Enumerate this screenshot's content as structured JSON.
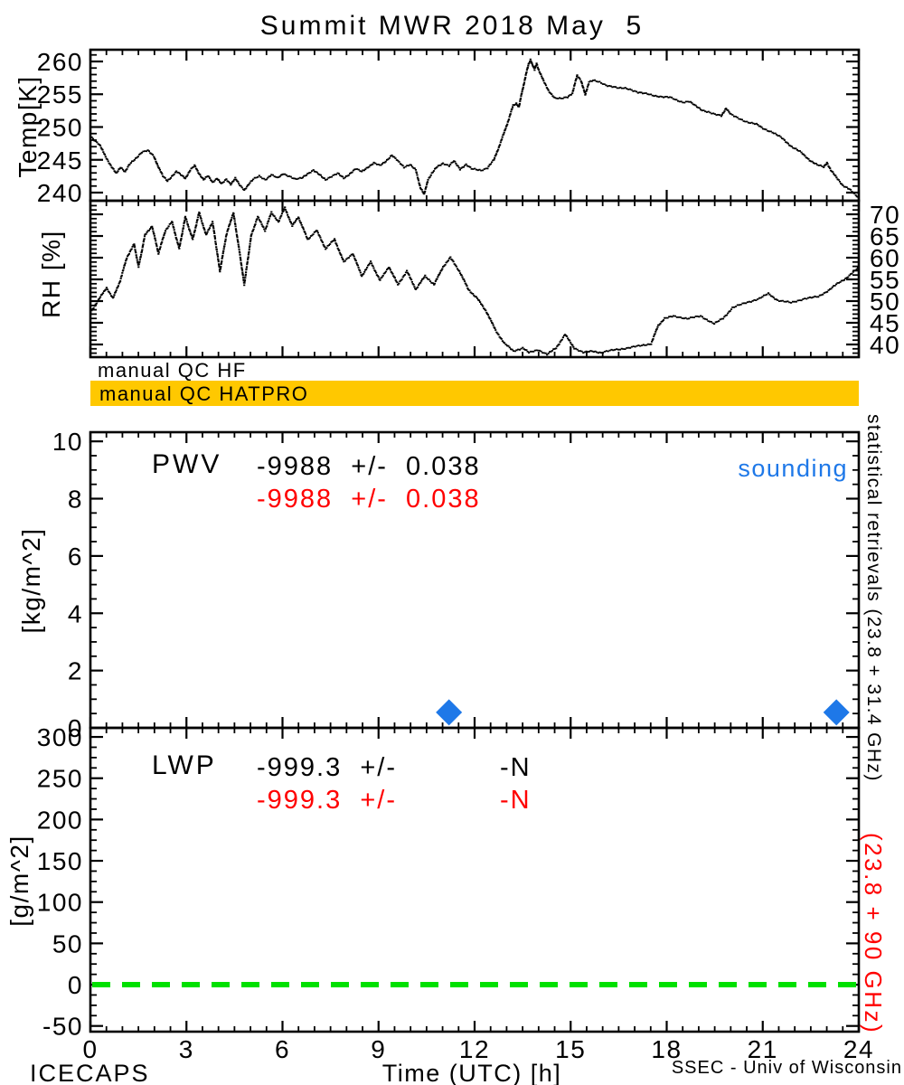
{
  "title": "Summit MWR 2018 May  5",
  "qc": {
    "hf_label": "manual QC HF",
    "hatpro_label": "manual QC HATPRO",
    "bar_color": "#ffc800"
  },
  "side_text": {
    "black": "statistical retrievals (23.8 + 31.4 GHz)",
    "red": "(23.8 + 90 GHz)",
    "red_color": "#ff0000"
  },
  "footer": {
    "left": "ICECAPS",
    "right": "SSEC - Univ of Wisconsin"
  },
  "x_axis": {
    "label": "Time (UTC) [h]",
    "xlim": [
      0,
      24
    ],
    "ticks": [
      0,
      3,
      6,
      9,
      12,
      15,
      18,
      21,
      24
    ],
    "minor_step": 0.5
  },
  "colors": {
    "trace": "#000000",
    "sounding_blue": "#1e78e8",
    "zero_line_green": "#00e000",
    "stat_red": "#ff0000"
  },
  "chart_data": [
    {
      "id": "temp",
      "type": "scatter",
      "ylabel": "Temp[K]",
      "ylim": [
        238.76,
        261.79
      ],
      "yticks": [
        240,
        245,
        250,
        255,
        260
      ],
      "yminor_step": 1,
      "ylabel_side": "left",
      "grid": false,
      "series": [
        {
          "name": "brightness temperature",
          "color": "#000000",
          "marker": "dot",
          "points": [
            [
              0,
              248.6
            ],
            [
              0.28,
              247.3
            ],
            [
              0.47,
              245.5
            ],
            [
              0.66,
              243.9
            ],
            [
              0.8,
              242.9
            ],
            [
              0.94,
              243.9
            ],
            [
              1.08,
              243.2
            ],
            [
              1.22,
              244.3
            ],
            [
              1.41,
              245.2
            ],
            [
              1.6,
              246.2
            ],
            [
              1.79,
              246.4
            ],
            [
              1.98,
              245.5
            ],
            [
              2.12,
              243.9
            ],
            [
              2.26,
              242.5
            ],
            [
              2.4,
              241.8
            ],
            [
              2.54,
              242.5
            ],
            [
              2.68,
              243.2
            ],
            [
              2.82,
              242.7
            ],
            [
              2.96,
              242.2
            ],
            [
              3.11,
              243.4
            ],
            [
              3.25,
              244.1
            ],
            [
              3.39,
              242.9
            ],
            [
              3.53,
              242.0
            ],
            [
              3.67,
              242.5
            ],
            [
              3.81,
              241.6
            ],
            [
              3.95,
              242.2
            ],
            [
              4.09,
              241.3
            ],
            [
              4.24,
              242.0
            ],
            [
              4.38,
              241.3
            ],
            [
              4.52,
              242.2
            ],
            [
              4.66,
              241.1
            ],
            [
              4.8,
              240.4
            ],
            [
              4.94,
              241.3
            ],
            [
              5.08,
              242.0
            ],
            [
              5.27,
              242.5
            ],
            [
              5.46,
              242.0
            ],
            [
              5.65,
              242.7
            ],
            [
              5.84,
              242.2
            ],
            [
              6.02,
              242.9
            ],
            [
              6.21,
              242.5
            ],
            [
              6.4,
              242.0
            ],
            [
              6.59,
              242.2
            ],
            [
              6.78,
              242.9
            ],
            [
              6.96,
              243.4
            ],
            [
              7.15,
              242.7
            ],
            [
              7.34,
              242.0
            ],
            [
              7.53,
              242.5
            ],
            [
              7.72,
              242.9
            ],
            [
              7.91,
              242.2
            ],
            [
              8.1,
              242.9
            ],
            [
              8.28,
              243.6
            ],
            [
              8.47,
              243.2
            ],
            [
              8.66,
              243.9
            ],
            [
              8.85,
              244.5
            ],
            [
              9.04,
              244.1
            ],
            [
              9.22,
              244.8
            ],
            [
              9.41,
              245.7
            ],
            [
              9.6,
              244.8
            ],
            [
              9.79,
              243.9
            ],
            [
              9.98,
              244.3
            ],
            [
              10.16,
              243.4
            ],
            [
              10.3,
              240.8
            ],
            [
              10.42,
              239.7
            ],
            [
              10.54,
              242.0
            ],
            [
              10.66,
              242.9
            ],
            [
              10.82,
              243.9
            ],
            [
              11.01,
              244.5
            ],
            [
              11.2,
              244.1
            ],
            [
              11.35,
              244.8
            ],
            [
              11.54,
              243.6
            ],
            [
              11.73,
              244.3
            ],
            [
              11.9,
              243.6
            ],
            [
              12.05,
              243.5
            ],
            [
              12.2,
              243.4
            ],
            [
              12.4,
              243.8
            ],
            [
              12.6,
              245.0
            ],
            [
              12.75,
              246.9
            ],
            [
              12.9,
              248.9
            ],
            [
              13.05,
              251.0
            ],
            [
              13.2,
              253.3
            ],
            [
              13.3,
              253.6
            ],
            [
              13.38,
              253.1
            ],
            [
              13.48,
              255.4
            ],
            [
              13.58,
              257.6
            ],
            [
              13.68,
              259.6
            ],
            [
              13.74,
              260.3
            ],
            [
              13.8,
              259.5
            ],
            [
              13.87,
              258.7
            ],
            [
              13.93,
              259.7
            ],
            [
              14.0,
              258.7
            ],
            [
              14.15,
              257.0
            ],
            [
              14.3,
              255.6
            ],
            [
              14.5,
              254.4
            ],
            [
              14.7,
              254.3
            ],
            [
              14.9,
              254.6
            ],
            [
              15.05,
              255.2
            ],
            [
              15.2,
              257.9
            ],
            [
              15.32,
              257.1
            ],
            [
              15.45,
              254.9
            ],
            [
              15.57,
              256.9
            ],
            [
              15.7,
              257.1
            ],
            [
              15.9,
              256.8
            ],
            [
              16.1,
              256.4
            ],
            [
              16.3,
              256.2
            ],
            [
              16.5,
              255.9
            ],
            [
              16.7,
              255.9
            ],
            [
              16.9,
              255.7
            ],
            [
              17.1,
              255.3
            ],
            [
              17.3,
              255.1
            ],
            [
              17.6,
              254.8
            ],
            [
              17.9,
              254.6
            ],
            [
              18.1,
              254.5
            ],
            [
              18.3,
              254.1
            ],
            [
              18.5,
              253.8
            ],
            [
              18.7,
              253.9
            ],
            [
              18.9,
              253.2
            ],
            [
              19.1,
              252.6
            ],
            [
              19.3,
              252.3
            ],
            [
              19.5,
              251.9
            ],
            [
              19.7,
              251.7
            ],
            [
              19.85,
              252.9
            ],
            [
              20.0,
              251.9
            ],
            [
              20.2,
              251.4
            ],
            [
              20.5,
              250.8
            ],
            [
              20.8,
              250.4
            ],
            [
              21.0,
              249.8
            ],
            [
              21.3,
              249.2
            ],
            [
              21.6,
              248.3
            ],
            [
              21.9,
              247.0
            ],
            [
              22.2,
              246.1
            ],
            [
              22.5,
              244.8
            ],
            [
              22.7,
              244.2
            ],
            [
              22.9,
              243.9
            ],
            [
              23.0,
              244.6
            ],
            [
              23.12,
              243.4
            ],
            [
              23.3,
              242.3
            ],
            [
              23.5,
              241.1
            ],
            [
              23.7,
              240.5
            ],
            [
              23.9,
              239.6
            ],
            [
              24.0,
              239.2
            ]
          ]
        }
      ]
    },
    {
      "id": "rh",
      "type": "scatter",
      "ylabel": "RH [%]",
      "ylim": [
        37.08,
        73.13
      ],
      "yticks": [
        40,
        45,
        50,
        55,
        60,
        65,
        70
      ],
      "yminor_step": 1,
      "ylabel_side": "right",
      "grid": false,
      "series": [
        {
          "name": "relative humidity",
          "color": "#000000",
          "marker": "dot",
          "points": [
            [
              0,
              47.5
            ],
            [
              0.28,
              50.6
            ],
            [
              0.5,
              53.1
            ],
            [
              0.7,
              50.6
            ],
            [
              0.93,
              54.8
            ],
            [
              1.13,
              60.0
            ],
            [
              1.36,
              63.1
            ],
            [
              1.5,
              57.9
            ],
            [
              1.7,
              65.2
            ],
            [
              1.92,
              67.3
            ],
            [
              2.12,
              61.0
            ],
            [
              2.34,
              66.3
            ],
            [
              2.54,
              68.3
            ],
            [
              2.77,
              62.1
            ],
            [
              2.96,
              69.4
            ],
            [
              3.19,
              64.2
            ],
            [
              3.39,
              70.4
            ],
            [
              3.61,
              65.2
            ],
            [
              3.81,
              68.3
            ],
            [
              4.04,
              56.9
            ],
            [
              4.24,
              65.2
            ],
            [
              4.46,
              70.4
            ],
            [
              4.66,
              61.0
            ],
            [
              4.8,
              53.8
            ],
            [
              5.02,
              65.2
            ],
            [
              5.22,
              69.4
            ],
            [
              5.45,
              66.3
            ],
            [
              5.65,
              70.4
            ],
            [
              5.87,
              68.3
            ],
            [
              6.07,
              71.5
            ],
            [
              6.3,
              67.3
            ],
            [
              6.49,
              69.4
            ],
            [
              6.78,
              64.2
            ],
            [
              7.06,
              66.3
            ],
            [
              7.34,
              62.1
            ],
            [
              7.62,
              64.2
            ],
            [
              7.91,
              59.0
            ],
            [
              8.19,
              61.0
            ],
            [
              8.47,
              55.8
            ],
            [
              8.75,
              59.0
            ],
            [
              9.04,
              54.8
            ],
            [
              9.32,
              57.9
            ],
            [
              9.6,
              53.8
            ],
            [
              9.88,
              56.9
            ],
            [
              10.16,
              52.7
            ],
            [
              10.45,
              55.8
            ],
            [
              10.73,
              53.8
            ],
            [
              11.01,
              57.9
            ],
            [
              11.24,
              60.0
            ],
            [
              11.52,
              56.9
            ],
            [
              11.8,
              52.7
            ],
            [
              12.08,
              50.6
            ],
            [
              12.37,
              47.5
            ],
            [
              12.65,
              43.3
            ],
            [
              12.93,
              40.2
            ],
            [
              13.21,
              38.5
            ],
            [
              13.5,
              39.2
            ],
            [
              13.69,
              38.1
            ],
            [
              13.98,
              38.8
            ],
            [
              14.26,
              37.7
            ],
            [
              14.54,
              39.2
            ],
            [
              14.82,
              42.3
            ],
            [
              15.11,
              39.2
            ],
            [
              15.39,
              38.1
            ],
            [
              15.67,
              38.5
            ],
            [
              15.95,
              38.1
            ],
            [
              16.38,
              38.8
            ],
            [
              16.8,
              39.2
            ],
            [
              17.22,
              39.8
            ],
            [
              17.51,
              40.2
            ],
            [
              17.73,
              44.4
            ],
            [
              17.93,
              46.0
            ],
            [
              18.21,
              46.5
            ],
            [
              18.64,
              46.0
            ],
            [
              19.06,
              46.5
            ],
            [
              19.48,
              44.8
            ],
            [
              19.76,
              46.0
            ],
            [
              20.05,
              48.5
            ],
            [
              20.47,
              49.6
            ],
            [
              20.89,
              50.6
            ],
            [
              21.17,
              51.7
            ],
            [
              21.46,
              50.2
            ],
            [
              21.88,
              49.6
            ],
            [
              22.31,
              50.6
            ],
            [
              22.73,
              51.0
            ],
            [
              23.01,
              52.3
            ],
            [
              23.29,
              53.8
            ],
            [
              23.58,
              55.2
            ],
            [
              23.86,
              56.9
            ],
            [
              24.0,
              57.7
            ]
          ]
        }
      ]
    },
    {
      "id": "pwv",
      "type": "scatter",
      "ylabel": "[kg/m^2]",
      "ylim": [
        0,
        10.32
      ],
      "yticks": [
        0,
        2,
        4,
        6,
        8,
        10
      ],
      "yminor_step": 0.5,
      "ylabel_side": "left",
      "grid": false,
      "annotations": {
        "label": "PWV",
        "stat_black": "-9988  +/-  0.038",
        "stat_red": "-9988  +/-  0.038",
        "legend": "sounding"
      },
      "series": [
        {
          "name": "sounding",
          "color": "#1e78e8",
          "marker": "diamond",
          "points": [
            [
              11.2,
              0.54
            ],
            [
              23.3,
              0.54
            ]
          ]
        }
      ]
    },
    {
      "id": "lwp",
      "type": "scatter",
      "ylabel": "[g/m^2]",
      "ylim": [
        -56.9,
        311.0
      ],
      "yticks": [
        -50,
        0,
        50,
        100,
        150,
        200,
        250,
        300
      ],
      "yminor_step": 12.5,
      "ylabel_side": "left",
      "grid": false,
      "annotations": {
        "label": "LWP",
        "stat_black": "-999.3  +/-",
        "sigma_black": "-N",
        "stat_red": "-999.3  +/-",
        "sigma_red": "-N"
      },
      "zero_line": {
        "y": 0,
        "color": "#00e000",
        "style": "dashed"
      },
      "series": []
    }
  ]
}
